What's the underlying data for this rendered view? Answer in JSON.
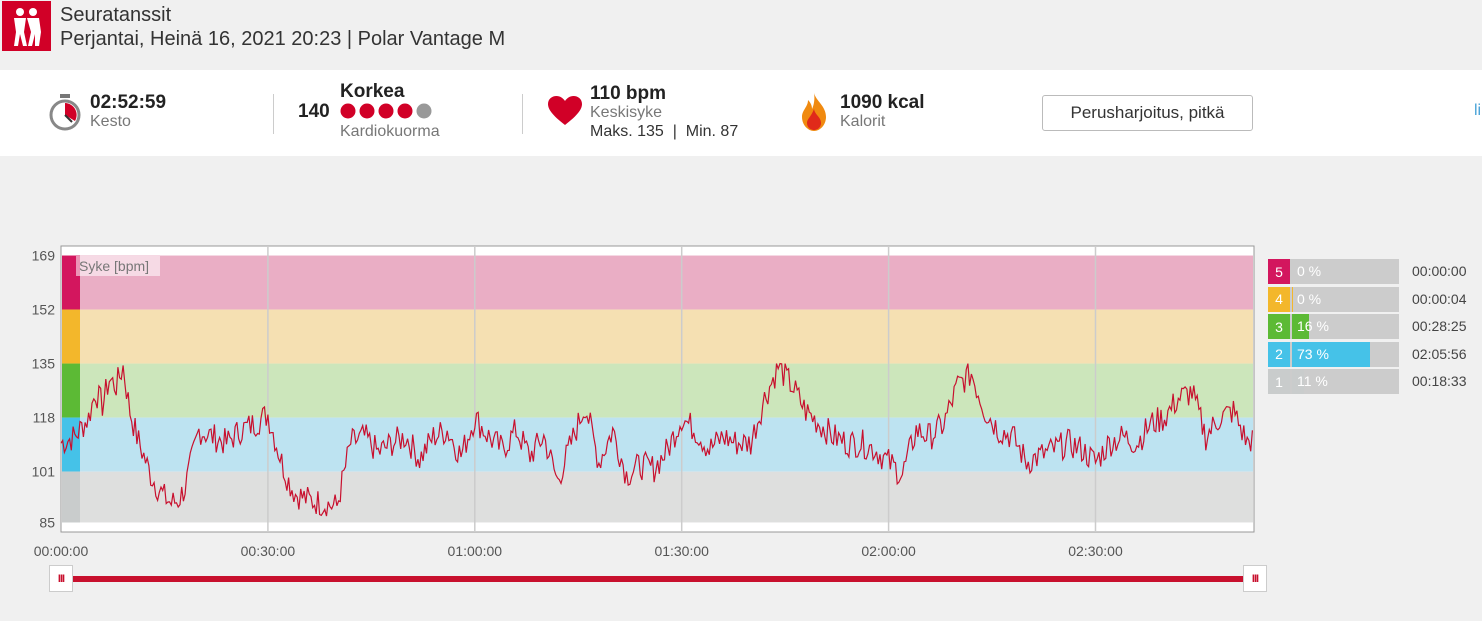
{
  "header": {
    "sport_name": "Seuratanssit",
    "date_device": "Perjantai, Heinä 16, 2021 20:23 | Polar Vantage M",
    "brand_color": "#d10027"
  },
  "summary": {
    "duration_value": "02:52:59",
    "duration_label": "Kesto",
    "cardio_number": "140",
    "cardio_level": "Korkea",
    "cardio_label": "Kardiokuorma",
    "cardio_dots_filled": 4,
    "cardio_dots_total": 5,
    "hr_value": "110 bpm",
    "hr_label": "Keskisyke",
    "hr_max_min": "Maks. 135  |  Min. 87",
    "kcal_value": "1090 kcal",
    "kcal_label": "Kalorit",
    "training_benefit_button": "Perusharjoitus, pitkä",
    "right_link_fragment": "li"
  },
  "zones": [
    {
      "num": "5",
      "pct": "0 %",
      "fraction": 0.0,
      "time": "00:00:00",
      "color": "#d3165e",
      "band": "#eaaec5"
    },
    {
      "num": "4",
      "pct": "0 %",
      "fraction": 0.005,
      "time": "00:00:04",
      "color": "#f3b72b",
      "band": "#f5e0b2"
    },
    {
      "num": "3",
      "pct": "16 %",
      "fraction": 0.16,
      "time": "00:28:25",
      "color": "#5cba35",
      "band": "#cce6bb"
    },
    {
      "num": "2",
      "pct": "73 %",
      "fraction": 0.73,
      "time": "02:05:56",
      "color": "#45c2e8",
      "band": "#bde3f1"
    },
    {
      "num": "1",
      "pct": "11 %",
      "fraction": 0.11,
      "time": "00:18:33",
      "color": "#c9cccc",
      "band": "#dedfde"
    }
  ],
  "chart_data": {
    "type": "line",
    "series_label": "Syke [bpm]",
    "ylim": [
      82,
      172
    ],
    "yticks": [
      169,
      152,
      135,
      118,
      101,
      85
    ],
    "zone_bounds": [
      169,
      152,
      135,
      118,
      101,
      85
    ],
    "xlim_seconds": [
      0,
      10379
    ],
    "xtick_labels": [
      "00:00:00",
      "00:30:00",
      "01:00:00",
      "01:30:00",
      "02:00:00",
      "02:30:00"
    ],
    "grid": true,
    "line_color": "#c8102e",
    "series": [
      {
        "name": "Syke [bpm]",
        "x_minutes": [
          0,
          2,
          4,
          5,
          6,
          7,
          8,
          9,
          10,
          11,
          12,
          13,
          14,
          15,
          16,
          17,
          18,
          20,
          22,
          24,
          26,
          28,
          30,
          32,
          33,
          34,
          36,
          38,
          40,
          42,
          44,
          46,
          48,
          50,
          52,
          54,
          56,
          58,
          60,
          62,
          64,
          66,
          68,
          70,
          72,
          74,
          76,
          78,
          80,
          82,
          84,
          86,
          88,
          90,
          92,
          94,
          96,
          98,
          100,
          102,
          104,
          106,
          108,
          110,
          112,
          114,
          116,
          118,
          120,
          122,
          124,
          126,
          128,
          130,
          132,
          134,
          136,
          138,
          140,
          142,
          144,
          146,
          148,
          150,
          152,
          154,
          156,
          158,
          160,
          162,
          164,
          166,
          168,
          170,
          172,
          173
        ],
        "y": [
          110,
          112,
          118,
          126,
          122,
          130,
          128,
          134,
          120,
          112,
          106,
          100,
          96,
          93,
          91,
          92,
          96,
          114,
          112,
          110,
          114,
          116,
          119,
          104,
          98,
          94,
          92,
          91,
          90,
          110,
          112,
          107,
          110,
          112,
          105,
          112,
          114,
          106,
          118,
          112,
          108,
          114,
          106,
          112,
          98,
          110,
          122,
          104,
          114,
          100,
          103,
          102,
          108,
          118,
          114,
          108,
          112,
          110,
          110,
          124,
          134,
          128,
          120,
          116,
          112,
          110,
          110,
          108,
          104,
          100,
          114,
          112,
          116,
          128,
          132,
          120,
          114,
          112,
          104,
          106,
          108,
          110,
          108,
          104,
          110,
          112,
          110,
          116,
          118,
          124,
          126,
          112,
          118,
          120,
          110,
          112
        ]
      }
    ]
  }
}
